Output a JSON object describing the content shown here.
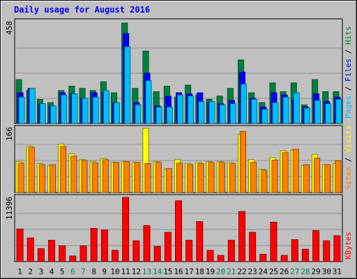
{
  "chart_data": {
    "type": "bar",
    "title": "Daily usage for August 2016",
    "days": [
      "1",
      "2",
      "3",
      "4",
      "5",
      "6",
      "7",
      "8",
      "9",
      "10",
      "11",
      "12",
      "13",
      "14",
      "15",
      "16",
      "17",
      "18",
      "19",
      "20",
      "21",
      "22",
      "23",
      "24",
      "25",
      "26",
      "27",
      "28",
      "29",
      "30",
      "31"
    ],
    "weekend_days": [
      "6",
      "7",
      "13",
      "14",
      "20",
      "21",
      "27",
      "28"
    ],
    "panels": [
      {
        "id": "hits",
        "ymax": 458,
        "ymax_label": "458",
        "axis_label": {
          "pages": "Pages",
          "files": "Files",
          "hits": "Hits",
          "sep": " / "
        },
        "series": [
          {
            "name": "Hits",
            "color": "#008040",
            "values": [
              200,
              150,
              110,
              95,
              150,
              170,
              160,
              150,
              190,
              140,
              458,
              160,
              330,
              145,
              170,
              120,
              175,
              130,
              110,
              125,
              160,
              290,
              140,
              95,
              185,
              145,
              185,
              85,
              200,
              145,
              145
            ]
          },
          {
            "name": "Files",
            "color": "#0000ff",
            "values": [
              140,
              160,
              90,
              80,
              140,
              135,
              115,
              140,
              140,
              95,
              410,
              95,
              230,
              80,
              125,
              140,
              135,
              140,
              95,
              90,
              105,
              235,
              115,
              75,
              140,
              130,
              110,
              75,
              135,
              100,
              120
            ]
          },
          {
            "name": "Pages",
            "color": "#00bfff",
            "values": [
              120,
              160,
              90,
              80,
              130,
              135,
              115,
              120,
              150,
              95,
              350,
              85,
              195,
              75,
              75,
              130,
              125,
              100,
              100,
              85,
              90,
              180,
              110,
              65,
              95,
              120,
              140,
              70,
              105,
              90,
              110
            ]
          }
        ]
      },
      {
        "id": "visits",
        "ymax": 166,
        "ymax_label": "166",
        "axis_label": {
          "sites": "Sites",
          "visits": "Visits",
          "sep": " / "
        },
        "series": [
          {
            "name": "Visits",
            "color": "#ffff00",
            "values": [
              80,
              120,
              75,
              70,
              125,
              100,
              85,
              80,
              88,
              78,
              80,
              78,
              166,
              80,
              60,
              85,
              75,
              78,
              80,
              80,
              78,
              150,
              85,
              60,
              90,
              108,
              110,
              70,
              98,
              72,
              75
            ]
          },
          {
            "name": "Sites",
            "color": "#ff8000",
            "values": [
              76,
              117,
              72,
              72,
              119,
              94,
              83,
              77,
              85,
              78,
              80,
              78,
              75,
              78,
              62,
              76,
              72,
              75,
              78,
              78,
              75,
              158,
              78,
              58,
              84,
              103,
              112,
              72,
              89,
              72,
              82
            ]
          }
        ]
      },
      {
        "id": "kbytes",
        "ymax": 11396,
        "ymax_label": "11396",
        "axis_label": {
          "kbytes": "KBytes"
        },
        "series": [
          {
            "name": "KBytes",
            "color": "#ff0000",
            "values": [
              5800,
              4200,
              2300,
              3800,
              2800,
              1000,
              2800,
              5900,
              5600,
              2000,
              11396,
              3700,
              6400,
              2700,
              5200,
              10800,
              3800,
              7100,
              2000,
              1100,
              3800,
              8900,
              5200,
              1300,
              7000,
              1100,
              3900,
              2200,
              5500,
              3700,
              4600
            ]
          }
        ]
      }
    ]
  }
}
